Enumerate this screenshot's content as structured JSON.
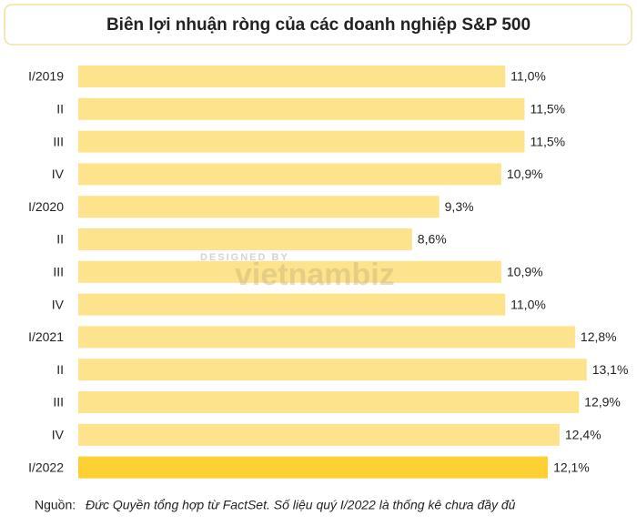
{
  "chart_data": {
    "type": "bar",
    "orientation": "horizontal",
    "title": "Biên lợi nhuận ròng của các doanh nghiệp S&P 500",
    "categories": [
      "I/2019",
      "II",
      "III",
      "IV",
      "I/2020",
      "II",
      "III",
      "IV",
      "I/2021",
      "II",
      "III",
      "IV",
      "I/2022"
    ],
    "values": [
      11.0,
      11.5,
      11.5,
      10.9,
      9.3,
      8.6,
      10.9,
      11.0,
      12.8,
      13.1,
      12.9,
      12.4,
      12.1
    ],
    "value_labels": [
      "11,0%",
      "11,5%",
      "11,5%",
      "10,9%",
      "9,3%",
      "8,6%",
      "10,9%",
      "11,0%",
      "12,8%",
      "13,1%",
      "12,9%",
      "12,4%",
      "12,1%"
    ],
    "colors": [
      "#fde38c",
      "#fde38c",
      "#fde38c",
      "#fde38c",
      "#fde38c",
      "#fde38c",
      "#fde38c",
      "#fde38c",
      "#fde38c",
      "#fde38c",
      "#fde38c",
      "#fde38c",
      "#fdd033"
    ],
    "source": {
      "label": "Nguồn:",
      "text": "Đức Quyền tổng hợp từ FactSet. Số liệu quý I/2022 là thống kê chưa đầy đủ"
    },
    "watermark": {
      "top": "DESIGNED BY",
      "brand": "vietnambiz"
    }
  }
}
